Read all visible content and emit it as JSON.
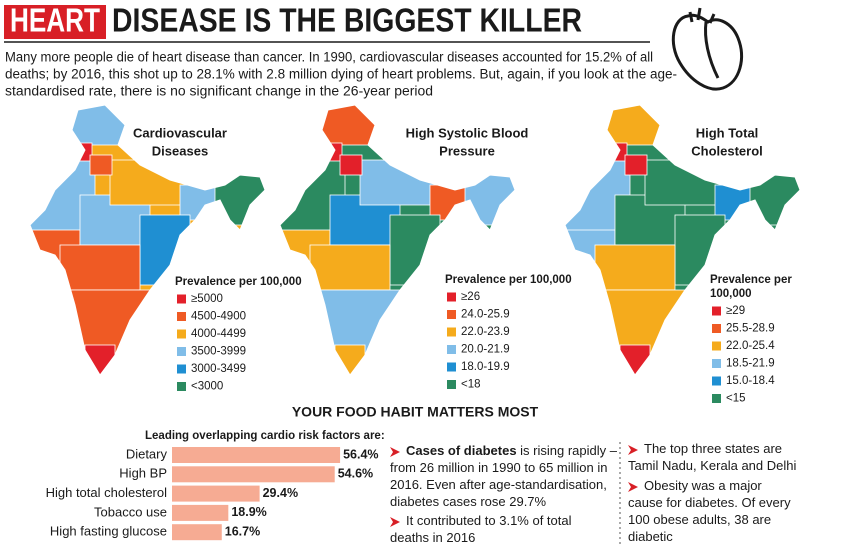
{
  "header": {
    "title_highlight": "HEART",
    "title_rest": "DISEASE IS THE BIGGEST KILLER",
    "intro": [
      "Many more people die of heart disease than cancer. In 1990, cardiovascular diseases accounted for 15.2% of all",
      "deaths; by 2016, this shot up to 28.1% with 2.8 million dying of heart problems. But, again, if you look at the age-",
      "standardised rate, there is no significant change in the 26-year period"
    ]
  },
  "maps": [
    {
      "title": [
        "Cardiovascular",
        "Diseases"
      ],
      "legend_title": [
        "Prevalence per 100,000"
      ],
      "legend": [
        {
          "label": "≥5000",
          "color": "#e3202a"
        },
        {
          "label": "4500-4900",
          "color": "#ef5a24"
        },
        {
          "label": "4000-4499",
          "color": "#f5ab1c"
        },
        {
          "label": "3500-3999",
          "color": "#80bde8"
        },
        {
          "label": "3000-3499",
          "color": "#1f8fd2"
        },
        {
          "label": "<3000",
          "color": "#2b8a60"
        }
      ]
    },
    {
      "title": [
        "High Systolic Blood",
        "Pressure"
      ],
      "legend_title": [
        "Prevalence per 100,000"
      ],
      "legend": [
        {
          "label": "≥26",
          "color": "#e3202a"
        },
        {
          "label": "24.0-25.9",
          "color": "#ef5a24"
        },
        {
          "label": "22.0-23.9",
          "color": "#f5ab1c"
        },
        {
          "label": "20.0-21.9",
          "color": "#80bde8"
        },
        {
          "label": "18.0-19.9",
          "color": "#1f8fd2"
        },
        {
          "label": "<18",
          "color": "#2b8a60"
        }
      ]
    },
    {
      "title": [
        "High Total",
        "Cholesterol"
      ],
      "legend_title": [
        "Prevalence per",
        "100,000"
      ],
      "legend": [
        {
          "label": "≥29",
          "color": "#e3202a"
        },
        {
          "label": "25.5-28.9",
          "color": "#ef5a24"
        },
        {
          "label": "22.0-25.4",
          "color": "#f5ab1c"
        },
        {
          "label": "18.5-21.9",
          "color": "#80bde8"
        },
        {
          "label": "15.0-18.4",
          "color": "#1f8fd2"
        },
        {
          "label": "<15",
          "color": "#2b8a60"
        }
      ]
    }
  ],
  "section_title": "YOUR FOOD HABIT MATTERS MOST",
  "chart_data": {
    "type": "bar",
    "orientation": "horizontal",
    "title": "Leading overlapping cardio risk factors are:",
    "categories": [
      "Dietary",
      "High BP",
      "High total cholesterol",
      "Tobacco use",
      "High fasting glucose"
    ],
    "values": [
      56.4,
      54.6,
      29.4,
      18.9,
      16.7
    ],
    "value_labels": [
      "56.4%",
      "54.6%",
      "29.4%",
      "18.9%",
      "16.7%"
    ],
    "color": "#f6ab93"
  },
  "notes": [
    [
      {
        "bold": "Cases of diabetes",
        "lines": [
          "is rising rapidly –",
          "from 26 million in 1990 to 65 million in",
          "2016. Even after age-standardisation,",
          "diabetes cases rose 29.7%"
        ]
      },
      {
        "bold": "",
        "lines": [
          "It contributed to 3.1% of total",
          "deaths in 2016"
        ]
      }
    ],
    [
      {
        "bold": "",
        "lines": [
          "The top three states are",
          "Tamil Nadu, Kerala and Delhi"
        ]
      },
      {
        "bold": "",
        "lines": [
          "Obesity was a major",
          "cause for diabetes. Of every",
          "100 obese adults, 38 are",
          "diabetic"
        ]
      }
    ]
  ]
}
